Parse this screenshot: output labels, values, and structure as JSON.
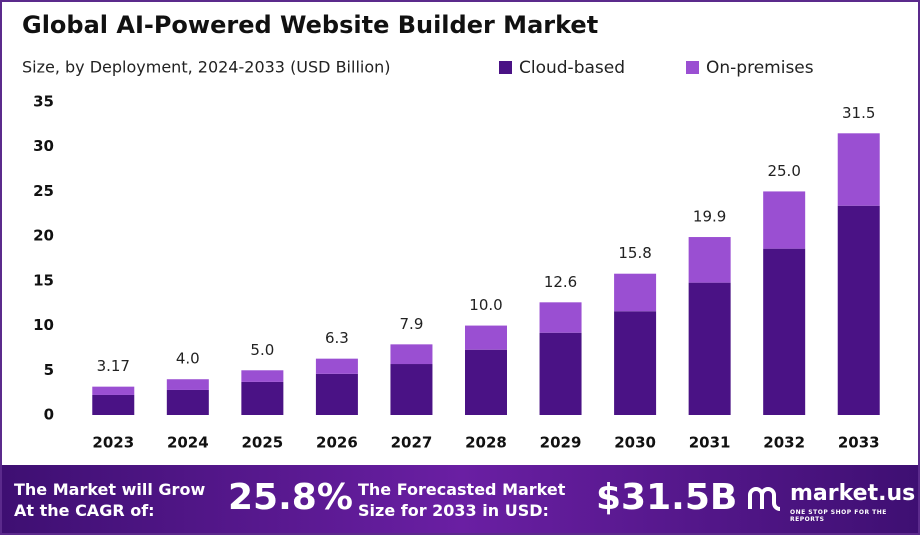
{
  "chart_data": {
    "type": "stacked_bar",
    "title": "Global AI-Powered Website Builder Market",
    "subtitle": "Size, by Deployment, 2024-2033 (USD Billion)",
    "categories": [
      "2023",
      "2024",
      "2025",
      "2026",
      "2027",
      "2028",
      "2029",
      "2030",
      "2031",
      "2032",
      "2033"
    ],
    "series": [
      {
        "name": "Cloud-based",
        "color": "#4a1285",
        "values": [
          2.24,
          2.8,
          3.7,
          4.6,
          5.7,
          7.3,
          9.2,
          11.6,
          14.8,
          18.6,
          23.4
        ]
      },
      {
        "name": "On-premises",
        "color": "#9a4fd2",
        "values": [
          0.93,
          1.2,
          1.3,
          1.7,
          2.2,
          2.7,
          3.4,
          4.2,
          5.1,
          6.4,
          8.1
        ]
      }
    ],
    "totals": {
      "values": [
        3.17,
        4.0,
        5.0,
        6.3,
        7.9,
        10.0,
        12.6,
        15.8,
        19.9,
        25.0,
        31.5
      ],
      "value_labels": [
        "3.17",
        "4.0",
        "5.0",
        "6.3",
        "7.9",
        "10.0",
        "12.6",
        "15.8",
        "19.9",
        "25.0",
        "31.5"
      ]
    },
    "ylim": [
      0,
      35
    ],
    "yticks": [
      0,
      5,
      10,
      15,
      20,
      25,
      30,
      35
    ],
    "grid": false,
    "legend": "top-right"
  },
  "footer": {
    "cagr_text": "The Market will Grow At the CAGR of:",
    "cagr": "25.8%",
    "forecast_text": "The Forecasted Market Size for 2033 in USD:",
    "forecast": "$31.5B",
    "brand": "market.us",
    "tagline": "ONE STOP SHOP FOR THE REPORTS"
  }
}
